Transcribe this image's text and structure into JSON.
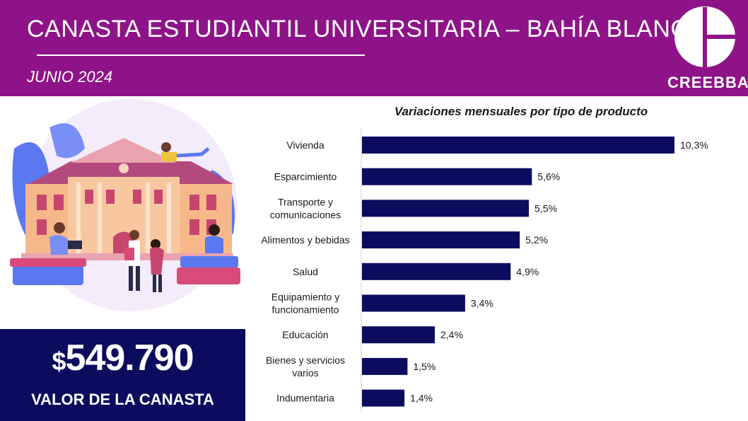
{
  "header": {
    "title": "CANASTA ESTUDIANTIL UNIVERSITARIA – BAHÍA BLANCA",
    "subtitle": "JUNIO 2024",
    "logo_text": "CREEBBA"
  },
  "summary": {
    "currency": "$",
    "amount": "549.790",
    "label": "VALOR DE LA CANASTA"
  },
  "colors": {
    "header_bg": "#8e1388",
    "price_box_bg": "#0c0c5e",
    "bar": "#0c0c5e"
  },
  "illustration": {
    "icon": "university-building-students-illustration"
  },
  "chart_data": {
    "type": "bar",
    "orientation": "horizontal",
    "title": "Variaciones mensuales por tipo de producto",
    "categories": [
      [
        "Vivienda"
      ],
      [
        "Esparcimiento"
      ],
      [
        "Transporte y",
        "comunicaciones"
      ],
      [
        "Alimentos y bebidas"
      ],
      [
        "Salud"
      ],
      [
        "Equipamiento y",
        "funcionamiento"
      ],
      [
        "Educación"
      ],
      [
        "Bienes y servicios",
        "varios"
      ],
      [
        "Indumentaria"
      ]
    ],
    "values": [
      10.3,
      5.6,
      5.5,
      5.2,
      4.9,
      3.4,
      2.4,
      1.5,
      1.4
    ],
    "value_labels": [
      "10,3%",
      "5,6%",
      "5,5%",
      "5,2%",
      "4,9%",
      "3,4%",
      "2,4%",
      "1,5%",
      "1,4%"
    ],
    "xlim": [
      0,
      10.3
    ],
    "grid": false,
    "legend": "none"
  }
}
